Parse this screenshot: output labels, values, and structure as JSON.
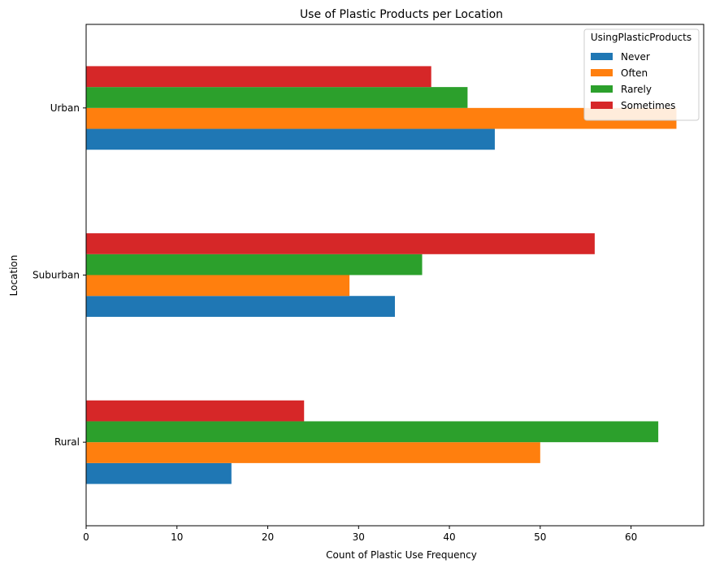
{
  "chart_data": {
    "type": "bar",
    "orientation": "horizontal",
    "title": "Use of Plastic Products per Location",
    "xlabel": "Count of Plastic Use Frequency",
    "ylabel": "Location",
    "categories": [
      "Rural",
      "Suburban",
      "Urban"
    ],
    "series": [
      {
        "name": "Never",
        "color": "#1f77b4",
        "values": [
          16,
          34,
          45
        ]
      },
      {
        "name": "Often",
        "color": "#ff7f0e",
        "values": [
          50,
          29,
          65
        ]
      },
      {
        "name": "Rarely",
        "color": "#2ca02c",
        "values": [
          63,
          37,
          42
        ]
      },
      {
        "name": "Sometimes",
        "color": "#d62728",
        "values": [
          24,
          56,
          38
        ]
      }
    ],
    "xlim": [
      0,
      68
    ],
    "xticks": [
      0,
      10,
      20,
      30,
      40,
      50,
      60
    ],
    "grid": false,
    "legend": {
      "title": "UsingPlasticProducts",
      "position": "top-right"
    }
  }
}
